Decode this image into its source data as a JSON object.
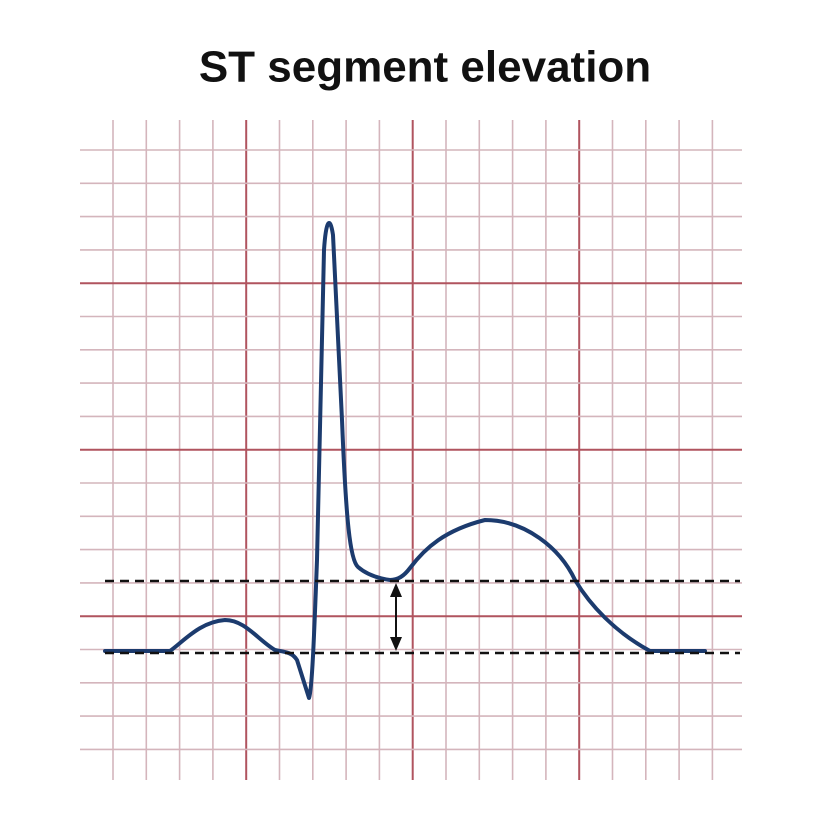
{
  "title": "ST segment elevation"
}
